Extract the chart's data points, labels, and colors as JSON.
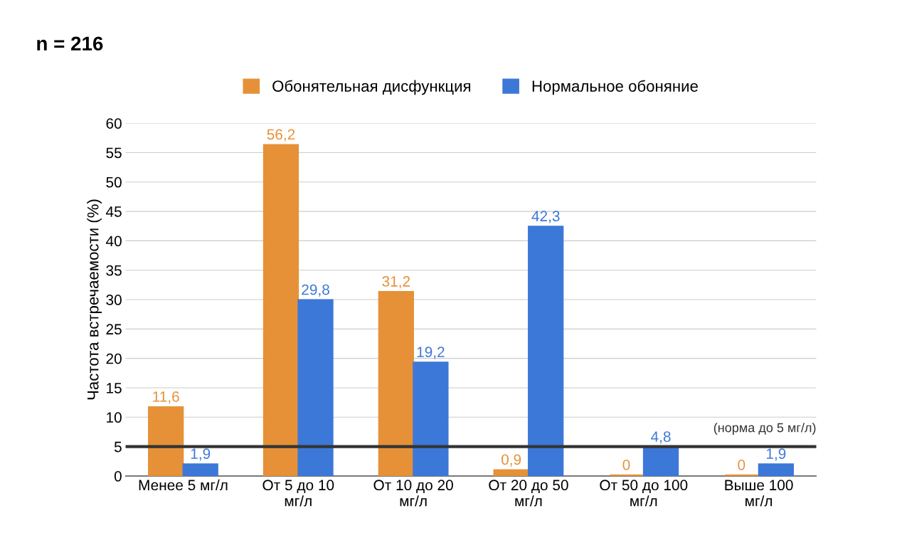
{
  "chart_data": {
    "type": "bar",
    "title": "n = 216",
    "ylabel": "Частота встречаемости (%)",
    "categories": [
      "Менее 5 мг/л",
      "От 5 до 10\nмг/л",
      "От 10 до 20\nмг/л",
      "От 20 до 50\nмг/л",
      "От 50 до 100\nмг/л",
      "Выше 100\nмг/л"
    ],
    "series": [
      {
        "name": "Обонятельная дисфункция",
        "color": "#e69138",
        "values": [
          11.6,
          56.2,
          31.2,
          0.9,
          0,
          0
        ],
        "value_labels": [
          "11,6",
          "56,2",
          "31,2",
          "0,9",
          "0",
          "0"
        ]
      },
      {
        "name": "Нормальное обоняние",
        "color": "#3c78d8",
        "values": [
          1.9,
          29.8,
          19.2,
          42.3,
          4.8,
          1.9
        ],
        "value_labels": [
          "1,9",
          "29,8",
          "19,2",
          "42,3",
          "4,8",
          "1,9"
        ]
      }
    ],
    "ylim": [
      0,
      60
    ],
    "yticks": [
      0,
      5,
      10,
      15,
      20,
      25,
      30,
      35,
      40,
      45,
      50,
      55,
      60
    ],
    "grid": "y",
    "legend": "top",
    "ref_lines": [
      {
        "axis": "y",
        "value": 5,
        "label": "(норма до 5 мг/л)",
        "color": "#333333"
      }
    ]
  }
}
